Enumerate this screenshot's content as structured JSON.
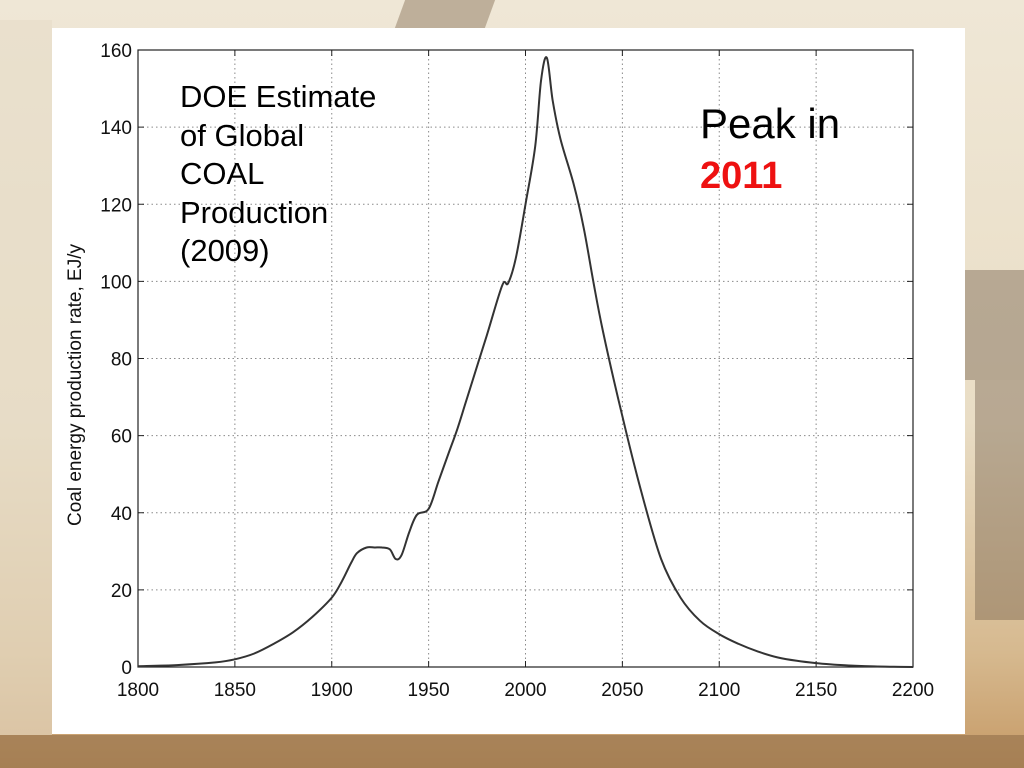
{
  "chart_data": {
    "type": "line",
    "title": "",
    "xlabel": "",
    "ylabel": "Coal energy production rate, EJ/y",
    "xlim": [
      1800,
      2200
    ],
    "ylim": [
      0,
      160
    ],
    "xticks": [
      1800,
      1850,
      1900,
      1950,
      2000,
      2050,
      2100,
      2150,
      2200
    ],
    "yticks": [
      0,
      20,
      40,
      60,
      80,
      100,
      120,
      140,
      160
    ],
    "grid": true,
    "line_color": "#333333",
    "series": [
      {
        "x": [
          1800,
          1820,
          1840,
          1850,
          1860,
          1870,
          1880,
          1890,
          1900,
          1905,
          1910,
          1913,
          1918,
          1922,
          1926,
          1930,
          1933,
          1936,
          1940,
          1944,
          1950,
          1955,
          1960,
          1965,
          1970,
          1980,
          1988,
          1991,
          1995,
          2000,
          2005,
          2008,
          2011,
          2014,
          2018,
          2025,
          2030,
          2035,
          2040,
          2050,
          2060,
          2070,
          2080,
          2090,
          2100,
          2110,
          2120,
          2130,
          2140,
          2150,
          2160,
          2170,
          2180,
          2190,
          2200
        ],
        "y": [
          0.2,
          0.5,
          1.2,
          2,
          3.5,
          6,
          9,
          13,
          18,
          22,
          27,
          29.5,
          31,
          31,
          31,
          30.5,
          28,
          29,
          35,
          39.5,
          41,
          48,
          55,
          62,
          70,
          86,
          99,
          99.5,
          106,
          120,
          135,
          152,
          158,
          147,
          137,
          125,
          114,
          100,
          87,
          65,
          45,
          28,
          18,
          12,
          8.5,
          6,
          4,
          2.5,
          1.6,
          1,
          0.6,
          0.3,
          0.15,
          0.05,
          0
        ]
      }
    ]
  },
  "annotation": {
    "lines": [
      "DOE Estimate",
      "of Global",
      "COAL",
      "Production",
      "(2009)"
    ]
  },
  "peak_callout": {
    "label": "Peak in",
    "year": "2011",
    "year_color": "#ee1111"
  }
}
